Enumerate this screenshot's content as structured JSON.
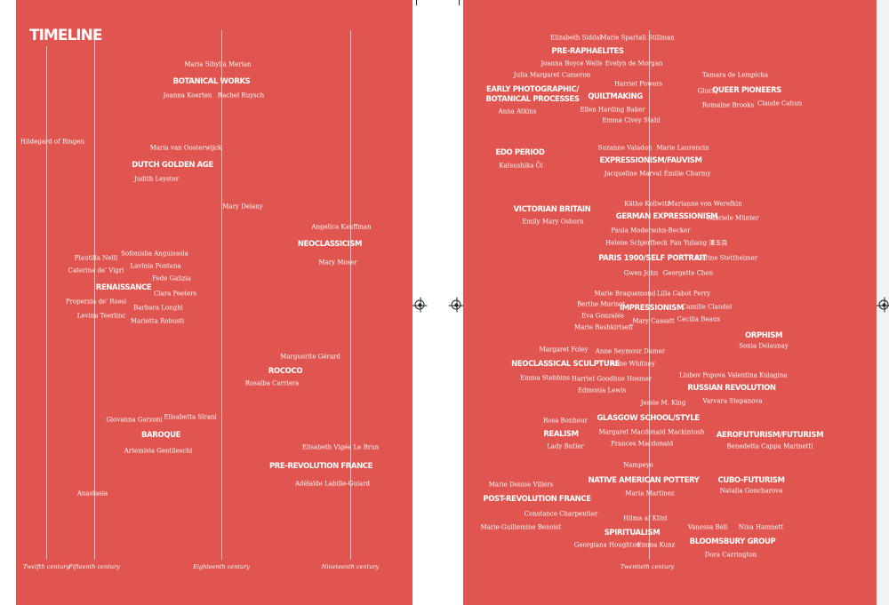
{
  "title": "TIMELINE",
  "centuries": [
    "Twelfth century",
    "Fifteenth century",
    "Eighteenth century",
    "Nineteenth century",
    "Twentieth century"
  ],
  "movements": [
    "BOTANICAL WORKS",
    "DUTCH GOLDEN AGE",
    "RENAISSANCE",
    "NEOCLASSICISM",
    "ROCOCO",
    "BAROQUE",
    "PRE-REVOLUTION FRANCE",
    "PRE-RAPHAELITES",
    "EARLY PHOTOGRAPHIC/",
    "BOTANICAL PROCESSES",
    "QUILTMAKING",
    "QUEER PIONEERS",
    "EDO PERIOD",
    "EXPRESSIONISM/FAUVISM",
    "VICTORIAN BRITAIN",
    "GERMAN EXPRESSIONISM",
    "PARIS 1900/SELF PORTRAIT",
    "IMPRESSIONISM",
    "ORPHISM",
    "NEOCLASSICAL SCULPTURE",
    "RUSSIAN REVOLUTION",
    "GLASGOW SCHOOL/STYLE",
    "REALISM",
    "AEROFUTURISM/FUTURISM",
    "NATIVE AMERICAN POTTERY",
    "CUBO-FUTURISM",
    "POST-REVOLUTION FRANCE",
    "SPIRITUALISM",
    "BLOOMSBURY GROUP"
  ],
  "artists": [
    "Maria Sibylla Merian",
    "Joanna Koerten",
    "Rachel Ruysch",
    "Hildegard of Bingen",
    "Maria van Oosterwijck",
    "Judith Leyster",
    "Mary Delany",
    "Angelica Kauffman",
    "Mary Moser",
    "Plautilla Nelli",
    "Sofonisba Anguissola",
    "Lavinia Fontana",
    "Caterina de' Vigri",
    "Fede Galizia",
    "Clara Peeters",
    "Properzia de' Rossi",
    "Barbara Longhi",
    "Levina Teerlinc",
    "Marietta Robusti",
    "Marguerite Gérard",
    "Rosalba Carriera",
    "Giovanna Garzoni",
    "Elisabetta Sirani",
    "Artemisia Gentileschi",
    "Elisabeth Vigée Le Brun",
    "Adélaïde Labille-Guiard",
    "Anastasia",
    "Elizabeth Siddal",
    "Marie Spartali Stillman",
    "Joanna Boyce Wells",
    "Evelyn de Morgan",
    "Julia Margaret Cameron",
    "Harriet Powers",
    "Tamara de Lempicka",
    "Gluck",
    "Romaine Brooks",
    "Claude Cahun",
    "Anna Atkins",
    "Ellen Harding Baker",
    "Emma Civey Stahl",
    "Suzanne Valadon",
    "Marie Laurencin",
    "Katsushika Ōi",
    "Jacqueline Marval",
    "Émilie Charmy",
    "Käthe Kollwitz",
    "Marianne von Werefkin",
    "Gabriele Münter",
    "Emily Mary Osborn",
    "Paula Modersohn-Becker",
    "Helene Schjerfbeck",
    "Pan Yuliang 潘玉良",
    "Florine Stettheimer",
    "Gwen John",
    "Georgette Chen",
    "Marie Braquemond",
    "Lilla Cabot Perry",
    "Berthe Morisot",
    "Camille Claudel",
    "Eva Gonzalès",
    "Cecilia Beaux",
    "Mary Cassatt",
    "Marie Bashkirtseff",
    "Sonia Delaunay",
    "Margaret Foley",
    "Anne Seymour Damer",
    "Anne Whitney",
    "Liubov Popova",
    "Valentina Kulagina",
    "Emma Stebbins",
    "Harriet Goodhue Hosmer",
    "Edmonia Lewis",
    "Varvara Stepanova",
    "Jessie M. King",
    "Rosa Bonheur",
    "Margaret Macdonald Mackintosh",
    "Frances Macdonald",
    "Lady Butler",
    "Benedetta Cappa Marinetti",
    "Nampeyo",
    "Marie Denise Villers",
    "Maria Martinez",
    "Natalia Goncharova",
    "Constance Charpentier",
    "Hilma af Klint",
    "Marie-Guillemine Benoist",
    "Vanessa Bell",
    "Nina Hamnett",
    "Georgiana Houghton",
    "Emma Kunz",
    "Dora Carrington"
  ]
}
